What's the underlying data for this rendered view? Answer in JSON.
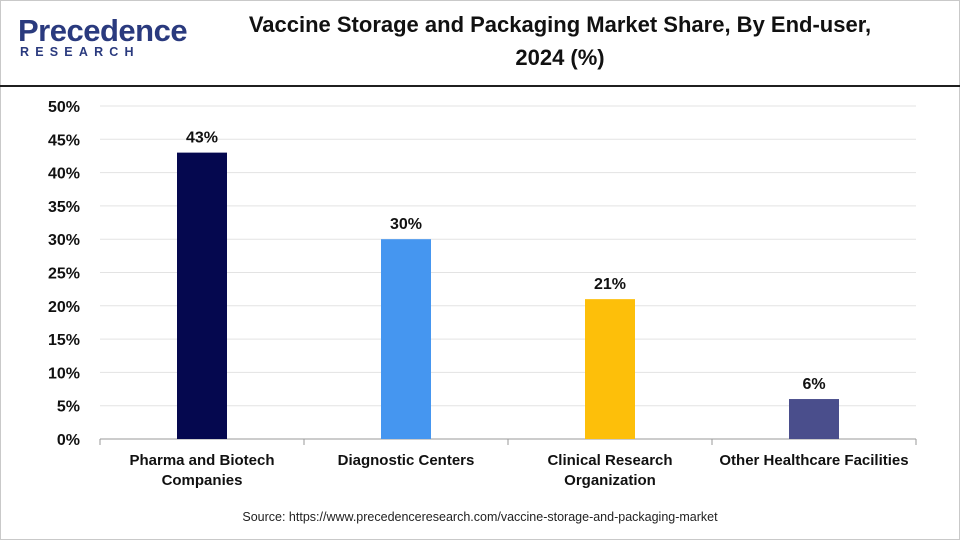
{
  "header": {
    "logo_main": "Precedence",
    "logo_sub": "RESEARCH",
    "title_line1": "Vaccine Storage and Packaging Market Share, By End-user,",
    "title_line2": "2024 (%)"
  },
  "source": "Source: https://www.precedenceresearch.com/vaccine-storage-and-packaging-market",
  "chart_data": {
    "type": "bar",
    "title": "Vaccine Storage and Packaging Market Share, By End-user, 2024 (%)",
    "xlabel": "",
    "ylabel": "",
    "ylim": [
      0,
      50
    ],
    "yticks": [
      0,
      5,
      10,
      15,
      20,
      25,
      30,
      35,
      40,
      45,
      50
    ],
    "ytick_labels": [
      "0%",
      "5%",
      "10%",
      "15%",
      "20%",
      "25%",
      "30%",
      "35%",
      "40%",
      "45%",
      "50%"
    ],
    "grid": true,
    "categories": [
      [
        "Pharma and Biotech",
        "Companies"
      ],
      [
        "Diagnostic Centers"
      ],
      [
        "Clinical Research",
        "Organization"
      ],
      [
        "Other Healthcare Facilities"
      ]
    ],
    "values": [
      43,
      30,
      21,
      6
    ],
    "data_labels": [
      "43%",
      "30%",
      "21%",
      "6%"
    ],
    "colors": [
      "#05084f",
      "#4596f0",
      "#fdbf0a",
      "#4a4e8c"
    ]
  }
}
